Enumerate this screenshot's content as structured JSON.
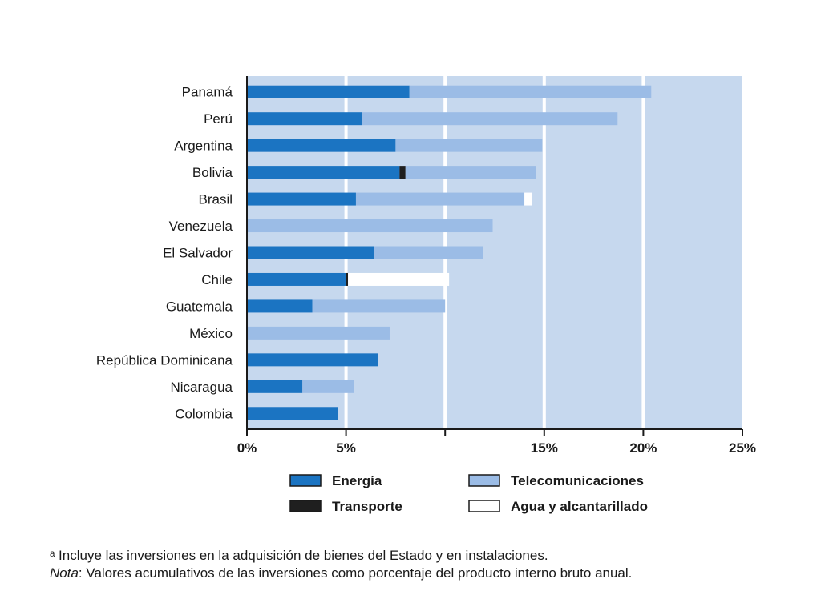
{
  "chart_data": {
    "type": "bar",
    "orientation": "horizontal",
    "stacked": true,
    "categories": [
      "Panamá",
      "Perú",
      "Argentina",
      "Bolivia",
      "Brasil",
      "Venezuela",
      "El Salvador",
      "Chile",
      "Guatemala",
      "México",
      "República Dominicana",
      "Nicaragua",
      "Colombia"
    ],
    "series": [
      {
        "name": "Energía",
        "color": "#1b74c2",
        "values": [
          8.2,
          5.8,
          7.5,
          7.7,
          5.5,
          0,
          6.4,
          5.0,
          3.3,
          0,
          6.6,
          2.8,
          4.6
        ]
      },
      {
        "name": "Transporte",
        "color": "#1f1f1f",
        "values": [
          0,
          0,
          0,
          0.3,
          0,
          0,
          0,
          0.1,
          0,
          0,
          0,
          0,
          0
        ]
      },
      {
        "name": "Telecomunicaciones",
        "color": "#9bbce6",
        "values": [
          12.2,
          12.9,
          7.4,
          6.6,
          8.5,
          12.4,
          5.5,
          0,
          6.7,
          7.2,
          0,
          2.6,
          0
        ]
      },
      {
        "name": "Agua y alcantarillado",
        "color": "#ffffff",
        "values": [
          0,
          0,
          0,
          0,
          0.4,
          0,
          0,
          5.1,
          0,
          0,
          0,
          0,
          0
        ]
      }
    ],
    "xlim": [
      0,
      25
    ],
    "xticks": [
      0,
      5,
      10,
      15,
      20,
      25
    ],
    "xtick_labels": [
      "0%",
      "5%",
      "",
      "15%",
      "20%",
      "25%"
    ],
    "plot_background": "#c6d8ee",
    "grid": true,
    "legend_position": "bottom",
    "legend_order": [
      "Energía",
      "Telecomunicaciones",
      "Transporte",
      "Agua y alcantarillado"
    ]
  },
  "notes": {
    "footnote": "ᵃ Incluye las inversiones en la adquisición de bienes del Estado y en instalaciones.",
    "nota_lead": "Nota",
    "nota_text": ": Valores acumulativos de las inversiones como porcentaje del producto interno bruto anual."
  }
}
